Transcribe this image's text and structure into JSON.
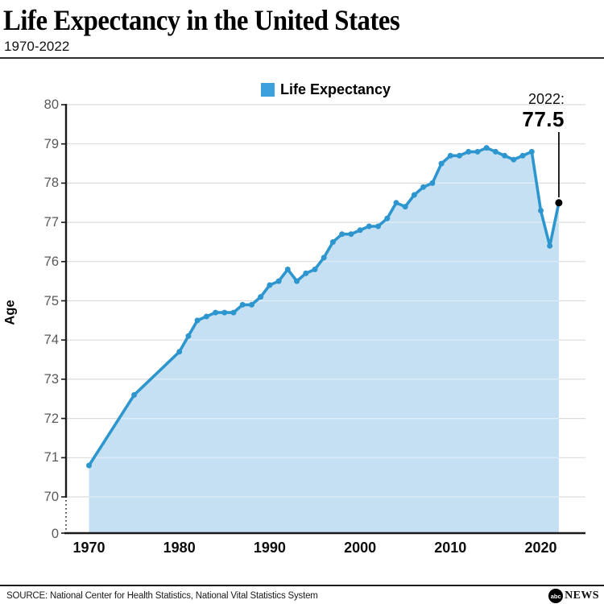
{
  "header": {
    "title": "Life Expectancy in the United States",
    "subtitle": "1970-2022"
  },
  "legend": {
    "label": "Life Expectancy"
  },
  "annotation": {
    "year_label": "2022:",
    "value_label": "77.5"
  },
  "y_axis": {
    "label": "Age",
    "ticks": [
      80,
      79,
      78,
      77,
      76,
      75,
      74,
      73,
      72,
      71,
      70
    ],
    "break_label": "0"
  },
  "x_axis": {
    "ticks": [
      1970,
      1980,
      1990,
      2000,
      2010,
      2020
    ]
  },
  "footer": {
    "source": "SOURCE: National Center for Health Statistics, National Vital Statistics System",
    "logo_abc": "abc",
    "logo_news": "NEWS"
  },
  "colors": {
    "line": "#2E96CE",
    "fill": "#C5E0F3",
    "legend_swatch": "#3BA0DC",
    "gridline": "#DCDCDC",
    "axis": "#1A1A1A",
    "tick_label": "#58595B",
    "endpoint": "#000000"
  },
  "chart_data": {
    "type": "area",
    "title": "Life Expectancy in the United States",
    "subtitle": "1970-2022",
    "series_name": "Life Expectancy",
    "xlabel": "",
    "ylabel": "Age",
    "x_range": [
      1970,
      2022
    ],
    "y_display_range": [
      70,
      80
    ],
    "y_axis_break_to_zero": true,
    "grid": true,
    "legend_position": "top-center",
    "points": [
      [
        1970,
        70.8
      ],
      [
        1975,
        72.6
      ],
      [
        1980,
        73.7
      ],
      [
        1981,
        74.1
      ],
      [
        1982,
        74.5
      ],
      [
        1983,
        74.6
      ],
      [
        1984,
        74.7
      ],
      [
        1985,
        74.7
      ],
      [
        1986,
        74.7
      ],
      [
        1987,
        74.9
      ],
      [
        1988,
        74.9
      ],
      [
        1989,
        75.1
      ],
      [
        1990,
        75.4
      ],
      [
        1991,
        75.5
      ],
      [
        1992,
        75.8
      ],
      [
        1993,
        75.5
      ],
      [
        1994,
        75.7
      ],
      [
        1995,
        75.8
      ],
      [
        1996,
        76.1
      ],
      [
        1997,
        76.5
      ],
      [
        1998,
        76.7
      ],
      [
        1999,
        76.7
      ],
      [
        2000,
        76.8
      ],
      [
        2001,
        76.9
      ],
      [
        2002,
        76.9
      ],
      [
        2003,
        77.1
      ],
      [
        2004,
        77.5
      ],
      [
        2005,
        77.4
      ],
      [
        2006,
        77.7
      ],
      [
        2007,
        77.9
      ],
      [
        2008,
        78.0
      ],
      [
        2009,
        78.5
      ],
      [
        2010,
        78.7
      ],
      [
        2011,
        78.7
      ],
      [
        2012,
        78.8
      ],
      [
        2013,
        78.8
      ],
      [
        2014,
        78.9
      ],
      [
        2015,
        78.8
      ],
      [
        2016,
        78.7
      ],
      [
        2017,
        78.6
      ],
      [
        2018,
        78.7
      ],
      [
        2019,
        78.8
      ],
      [
        2020,
        77.3
      ],
      [
        2021,
        76.4
      ],
      [
        2022,
        77.5
      ]
    ],
    "annotation": {
      "x": 2022,
      "y": 77.5,
      "text": "2022: 77.5"
    }
  }
}
